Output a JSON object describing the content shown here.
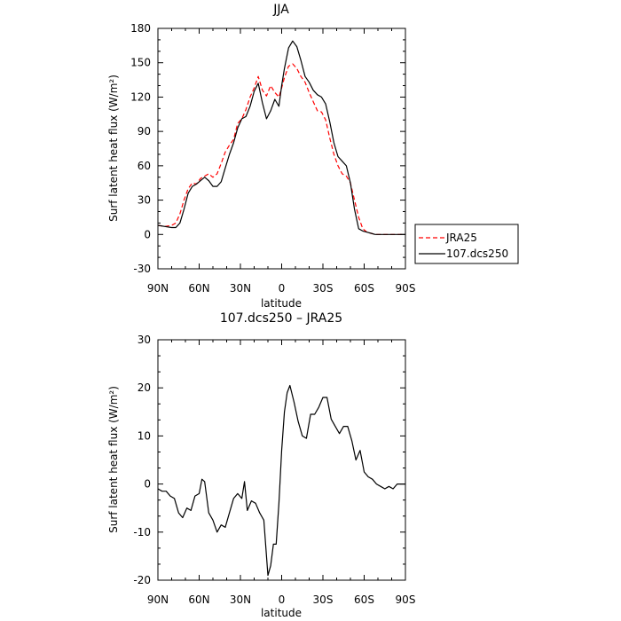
{
  "chart_data": [
    {
      "type": "line",
      "title": "JJA",
      "xlabel": "latitude",
      "ylabel": "Surf latent heat flux (W/m²)",
      "ylim": [
        -30,
        180
      ],
      "yticks": [
        -30,
        0,
        30,
        60,
        90,
        120,
        150,
        180
      ],
      "xlim": [
        90,
        -90
      ],
      "xticks": [
        90,
        60,
        30,
        0,
        -30,
        -60,
        -90
      ],
      "xtick_labels": [
        "90N",
        "60N",
        "30N",
        "0",
        "30S",
        "60S",
        "90S"
      ],
      "legend": "right",
      "x": [
        90,
        85,
        80,
        77,
        74,
        71,
        68,
        65,
        62,
        59,
        56,
        53,
        50,
        47,
        44,
        41,
        38,
        35,
        32,
        29,
        26,
        23,
        20,
        17,
        14,
        11,
        8,
        5,
        2,
        0,
        -2,
        -5,
        -8,
        -11,
        -14,
        -17,
        -20,
        -23,
        -26,
        -29,
        -32,
        -35,
        -38,
        -41,
        -44,
        -47,
        -50,
        -53,
        -56,
        -59,
        -62,
        -65,
        -68,
        -71,
        -74,
        -77,
        -80,
        -85,
        -90
      ],
      "series": [
        {
          "name": "JRA25",
          "color": "#ff0000",
          "dash": "dashed",
          "values": [
            8,
            7,
            8,
            10,
            18,
            30,
            40,
            45,
            44,
            49,
            51,
            53,
            50,
            53,
            62,
            72,
            78,
            83,
            97,
            101,
            109,
            120,
            128,
            138,
            126,
            121,
            130,
            124,
            120,
            128,
            137,
            147,
            149,
            145,
            138,
            133,
            124,
            116,
            108,
            107,
            100,
            84,
            70,
            60,
            53,
            51,
            45,
            30,
            15,
            5,
            2,
            1,
            0,
            0,
            0,
            0,
            0,
            0,
            0
          ]
        },
        {
          "name": "107.dcs250",
          "color": "#000000",
          "dash": "solid",
          "values": [
            8,
            7,
            6,
            6,
            10,
            22,
            36,
            42,
            44,
            47,
            50,
            47,
            42,
            42,
            46,
            58,
            70,
            80,
            93,
            101,
            103,
            112,
            125,
            132,
            115,
            101,
            108,
            118,
            112,
            130,
            145,
            163,
            169,
            164,
            152,
            138,
            133,
            126,
            122,
            120,
            114,
            98,
            80,
            68,
            64,
            60,
            45,
            22,
            5,
            3,
            2,
            1,
            0,
            0,
            0,
            0,
            0,
            0,
            0
          ]
        }
      ]
    },
    {
      "type": "line",
      "title": "107.dcs250 – JRA25",
      "xlabel": "latitude",
      "ylabel": "Surf latent heat flux (W/m²)",
      "ylim": [
        -20,
        30
      ],
      "yticks": [
        -20,
        -10,
        0,
        10,
        20,
        30
      ],
      "xlim": [
        90,
        -90
      ],
      "xticks": [
        90,
        60,
        30,
        0,
        -30,
        -60,
        -90
      ],
      "xtick_labels": [
        "90N",
        "60N",
        "30N",
        "0",
        "30S",
        "60S",
        "90S"
      ],
      "x": [
        90,
        87,
        84,
        81,
        78,
        75,
        72,
        69,
        66,
        63,
        60,
        58,
        56,
        53,
        50,
        47,
        44,
        41,
        38,
        35,
        32,
        29,
        27,
        25,
        22,
        19,
        16,
        13,
        10,
        8,
        6,
        4,
        2,
        0,
        -2,
        -4,
        -6,
        -9,
        -12,
        -15,
        -18,
        -21,
        -24,
        -27,
        -30,
        -33,
        -36,
        -39,
        -42,
        -45,
        -48,
        -51,
        -54,
        -57,
        -60,
        -63,
        -66,
        -69,
        -72,
        -75,
        -78,
        -81,
        -84,
        -87,
        -90
      ],
      "series": [
        {
          "color": "#000000",
          "values": [
            -1,
            -1.5,
            -1.5,
            -2.5,
            -3,
            -6,
            -7,
            -5,
            -5.5,
            -2.5,
            -2,
            1,
            0.5,
            -6,
            -7.5,
            -10,
            -8.5,
            -9,
            -6,
            -3,
            -2,
            -3,
            0.5,
            -5.5,
            -3.5,
            -4,
            -6,
            -7.5,
            -19,
            -17,
            -12.5,
            -12.5,
            -4,
            7,
            15,
            19,
            20.5,
            17,
            13,
            10,
            9.5,
            14.5,
            14.5,
            16,
            18,
            18,
            13.5,
            12,
            10.5,
            12,
            12,
            9,
            5,
            7,
            2.5,
            1.5,
            1,
            0,
            -0.5,
            -1,
            -0.5,
            -1,
            0,
            0,
            0
          ]
        }
      ]
    }
  ]
}
